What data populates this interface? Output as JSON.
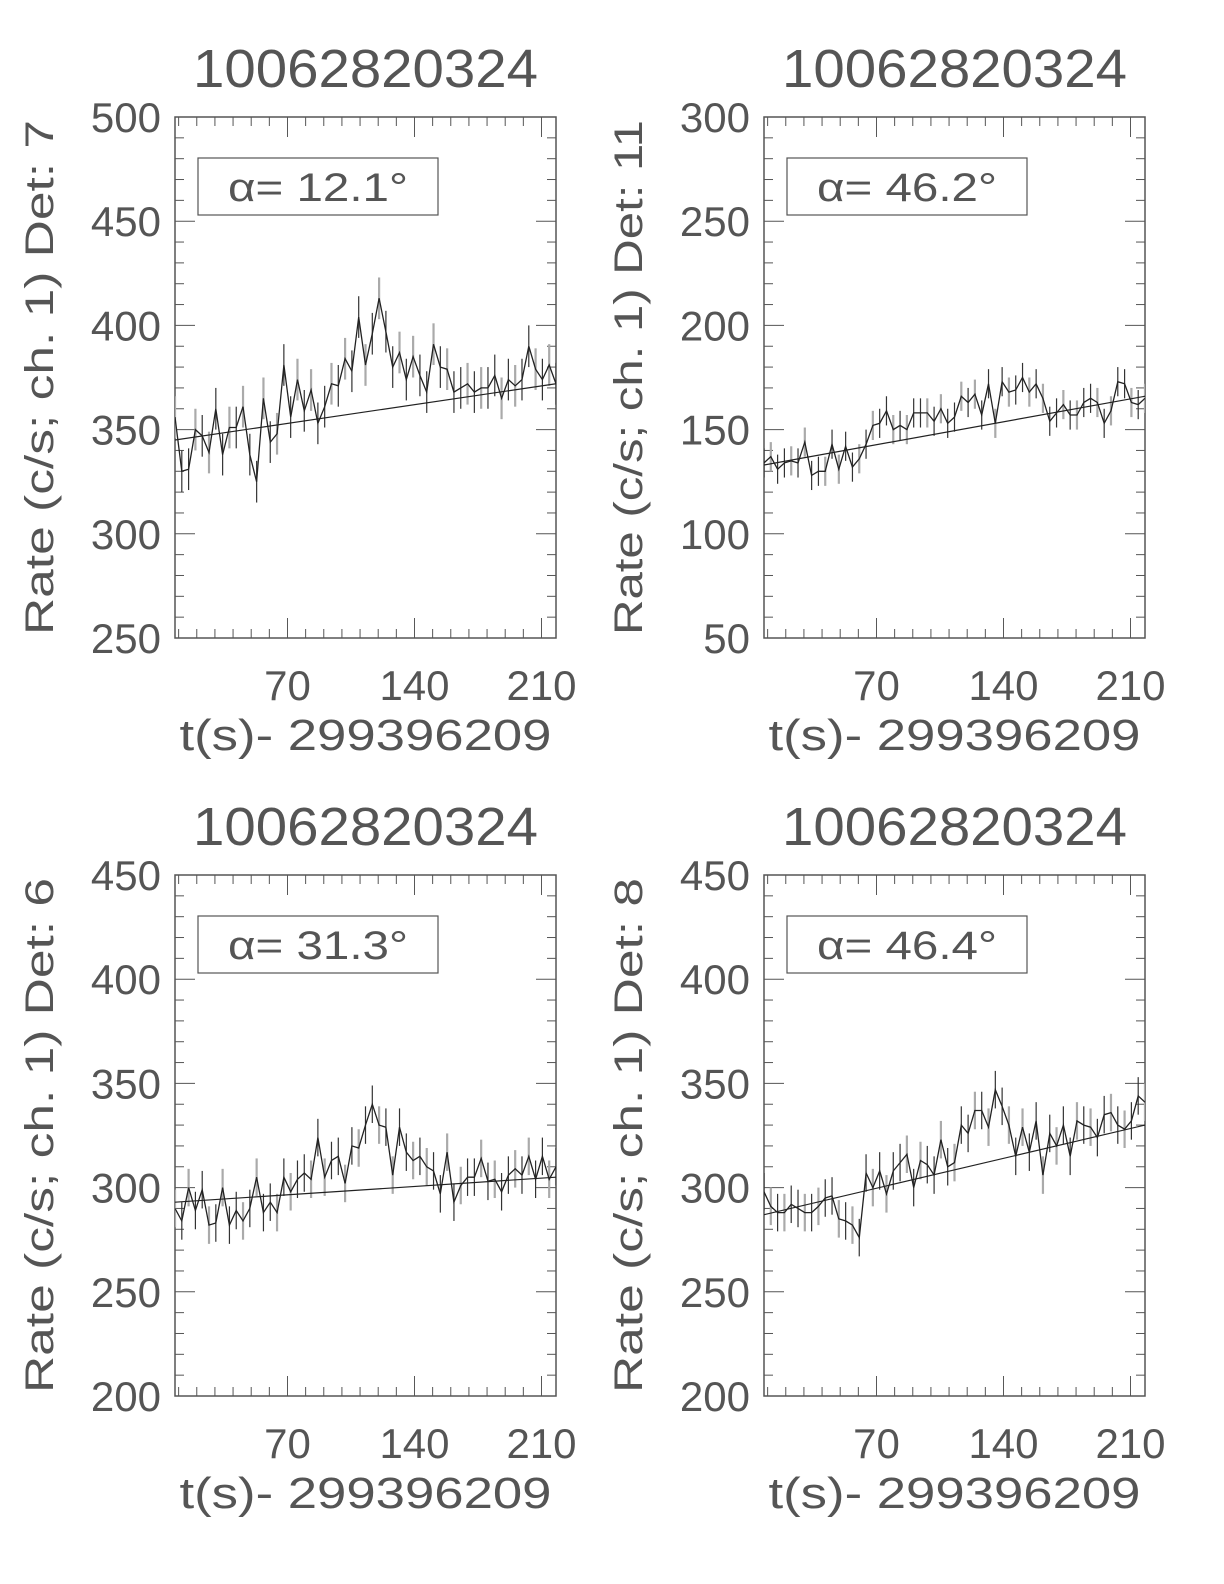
{
  "chart_data": [
    {
      "type": "line",
      "title": "10062820324",
      "xlabel": "t(s)- 299396209",
      "ylabel": "Rate (c/s; ch. 1) Det: 7",
      "annotation": "α= 12.1°",
      "xlim": [
        8,
        218
      ],
      "ylim": [
        250,
        500
      ],
      "xticks": [
        70,
        140,
        210
      ],
      "yticks": [
        250,
        300,
        350,
        400,
        450,
        500
      ],
      "error": 10,
      "fit_line": [
        345,
        372
      ],
      "values": [
        356,
        330,
        331,
        350,
        347,
        339,
        360,
        338,
        351,
        351,
        361,
        338,
        325,
        365,
        344,
        348,
        381,
        356,
        374,
        359,
        369,
        353,
        361,
        372,
        371,
        384,
        378,
        404,
        381,
        396,
        413,
        397,
        380,
        387,
        374,
        385,
        376,
        368,
        391,
        380,
        379,
        368,
        370,
        372,
        368,
        370,
        370,
        376,
        365,
        374,
        371,
        374,
        390,
        379,
        374,
        381,
        372
      ]
    },
    {
      "type": "line",
      "title": "10062820324",
      "xlabel": "t(s)- 299396209",
      "ylabel": "Rate (c/s; ch. 1) Det: 11",
      "annotation": "α= 46.2°",
      "xlim": [
        8,
        218
      ],
      "ylim": [
        50,
        300
      ],
      "xticks": [
        70,
        140,
        210
      ],
      "yticks": [
        50,
        100,
        150,
        200,
        250,
        300
      ],
      "error": 7,
      "fit_line": [
        133,
        166
      ],
      "values": [
        134,
        137,
        131,
        134,
        135,
        134,
        144,
        128,
        130,
        130,
        143,
        131,
        142,
        132,
        136,
        143,
        152,
        153,
        159,
        150,
        152,
        150,
        158,
        158,
        158,
        154,
        160,
        153,
        156,
        166,
        163,
        167,
        157,
        172,
        153,
        173,
        168,
        169,
        175,
        168,
        172,
        165,
        154,
        158,
        162,
        157,
        157,
        163,
        165,
        163,
        153,
        159,
        173,
        172,
        163,
        162,
        165
      ]
    },
    {
      "type": "line",
      "title": "10062820324",
      "xlabel": "t(s)- 299396209",
      "ylabel": "Rate (c/s; ch. 1) Det: 6",
      "annotation": "α= 31.3°",
      "xlim": [
        8,
        218
      ],
      "ylim": [
        200,
        450
      ],
      "xticks": [
        70,
        140,
        210
      ],
      "yticks": [
        200,
        250,
        300,
        350,
        400,
        450
      ],
      "error": 9,
      "fit_line": [
        293,
        305
      ],
      "values": [
        290,
        284,
        300,
        289,
        299,
        282,
        283,
        300,
        282,
        289,
        284,
        290,
        305,
        288,
        293,
        288,
        305,
        298,
        304,
        307,
        304,
        324,
        305,
        313,
        315,
        302,
        320,
        319,
        330,
        340,
        330,
        329,
        306,
        329,
        317,
        313,
        315,
        310,
        308,
        297,
        317,
        293,
        301,
        305,
        305,
        314,
        303,
        304,
        298,
        306,
        309,
        306,
        315,
        304,
        315,
        304,
        310
      ]
    },
    {
      "type": "line",
      "title": "10062820324",
      "xlabel": "t(s)- 299396209",
      "ylabel": "Rate (c/s; ch. 1) Det: 8",
      "annotation": "α= 46.4°",
      "xlim": [
        8,
        218
      ],
      "ylim": [
        200,
        450
      ],
      "xticks": [
        70,
        140,
        210
      ],
      "yticks": [
        200,
        250,
        300,
        350,
        400,
        450
      ],
      "error": 9,
      "fit_line": [
        287,
        330
      ],
      "values": [
        298,
        291,
        288,
        288,
        292,
        290,
        288,
        288,
        291,
        295,
        296,
        285,
        284,
        282,
        276,
        307,
        300,
        308,
        297,
        308,
        312,
        316,
        300,
        313,
        311,
        306,
        323,
        310,
        312,
        330,
        326,
        337,
        337,
        329,
        347,
        339,
        330,
        315,
        329,
        317,
        332,
        306,
        326,
        320,
        330,
        315,
        332,
        330,
        329,
        324,
        335,
        336,
        330,
        328,
        332,
        344,
        341
      ]
    }
  ],
  "x": [
    8,
    11.75,
    15.5,
    19.25,
    23,
    26.75,
    30.5,
    34.25,
    38,
    41.75,
    45.5,
    49.25,
    53,
    56.75,
    60.5,
    64.25,
    68,
    71.75,
    75.5,
    79.25,
    83,
    86.75,
    90.5,
    94.25,
    98,
    101.75,
    105.5,
    109.25,
    113,
    116.75,
    120.5,
    124.25,
    128,
    131.75,
    135.5,
    139.25,
    143,
    146.75,
    150.5,
    154.25,
    158,
    161.75,
    165.5,
    169.25,
    173,
    176.75,
    180.5,
    184.25,
    188,
    191.75,
    195.5,
    199.25,
    203,
    206.75,
    210.5,
    214.25,
    218
  ],
  "colors": {
    "line": "#222222",
    "error_dark": "#333333",
    "error_light": "#aaaaaa",
    "axis": "#555555"
  }
}
